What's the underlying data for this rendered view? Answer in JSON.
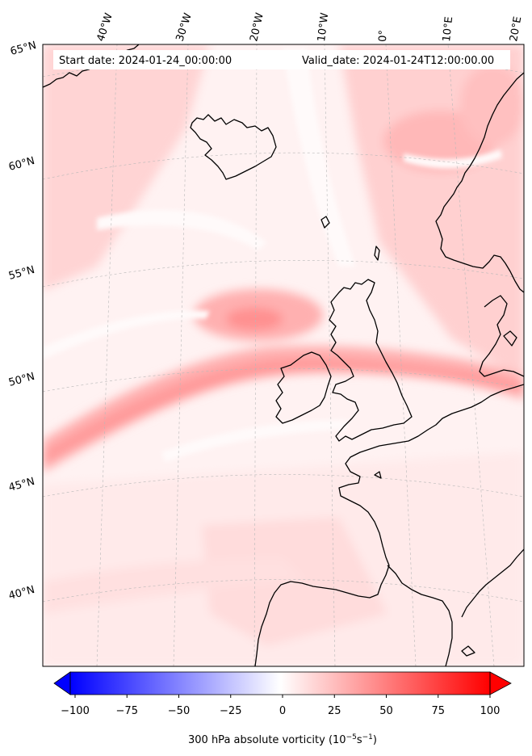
{
  "header": {
    "start_date": "Start date: 2024-01-24_00:00:00",
    "valid_date": "Valid_date: 2024-01-24T12:00:00.00"
  },
  "lon_labels": [
    "40°W",
    "30°W",
    "20°W",
    "10°W",
    "0°",
    "10°E",
    "20°E"
  ],
  "lat_labels": [
    "65°N",
    "60°N",
    "55°N",
    "50°N",
    "45°N",
    "40°N"
  ],
  "colorbar": {
    "ticks": [
      "−100",
      "−75",
      "−50",
      "−25",
      "0",
      "25",
      "50",
      "75",
      "100"
    ],
    "range": [
      -100,
      100
    ],
    "label_prefix": "300 hPa absolute vorticity (10",
    "label_exp1": "−5",
    "label_mid": "s",
    "label_exp2": "−1",
    "label_suffix": ")"
  },
  "colors": {
    "neg": "#0000ff",
    "pos": "#ff0000",
    "zero": "#ffffff",
    "coast": "#000000",
    "grid": "#b0b0b0"
  }
}
